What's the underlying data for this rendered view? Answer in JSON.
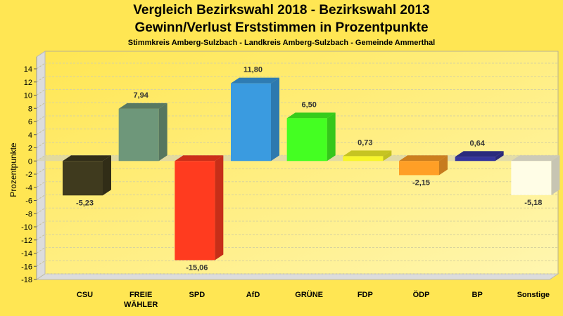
{
  "chart_data": {
    "type": "bar",
    "title": "Vergleich Bezirkswahl 2018 - Bezirkswahl 2013",
    "subtitle": "Gewinn/Verlust Erststimmen in Prozentpunkte",
    "subsubtitle": "Stimmkreis Amberg-Sulzbach - Landkreis Amberg-Sulzbach - Gemeinde Ammerthal",
    "xlabel": "",
    "ylabel": "Prozentpunkte",
    "ylim": [
      -18,
      14
    ],
    "yticks": [
      14,
      12,
      10,
      8,
      6,
      4,
      2,
      0,
      -2,
      -4,
      -6,
      -8,
      -10,
      -12,
      -14,
      -16,
      -18
    ],
    "grid": true,
    "categories": [
      {
        "lines": [
          "CSU"
        ]
      },
      {
        "lines": [
          "FREIE",
          "WÄHLER"
        ]
      },
      {
        "lines": [
          "SPD"
        ]
      },
      {
        "lines": [
          "AfD"
        ]
      },
      {
        "lines": [
          "GRÜNE"
        ]
      },
      {
        "lines": [
          "FDP"
        ]
      },
      {
        "lines": [
          "ÖDP"
        ]
      },
      {
        "lines": [
          "BP"
        ]
      },
      {
        "lines": [
          "Sonstige"
        ]
      }
    ],
    "values": [
      -5.23,
      7.94,
      -15.06,
      11.8,
      6.5,
      0.73,
      -2.15,
      0.64,
      -5.18
    ],
    "value_labels": [
      "-5,23",
      "7,94",
      "-15,06",
      "11,80",
      "6,50",
      "0,73",
      "-2,15",
      "0,64",
      "-5,18"
    ],
    "colors": [
      "#3F3A1E",
      "#6E977A",
      "#FF3B1F",
      "#3A9BE0",
      "#44FF22",
      "#F7F52A",
      "#FF9F26",
      "#34349C",
      "#FFFDE6"
    ]
  }
}
